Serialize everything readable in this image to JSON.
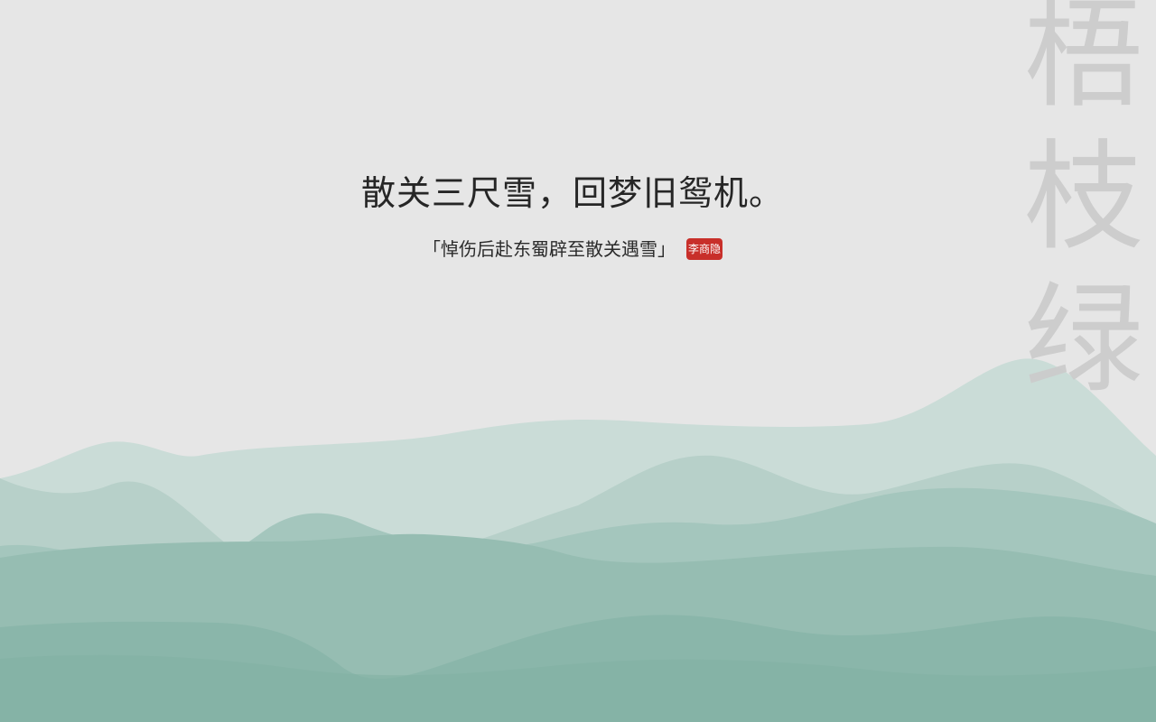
{
  "background": {
    "base_color": "#e6e6e6",
    "mountain_colors": [
      "#c9dcd7",
      "#b4cec7",
      "#a2c4bb",
      "#93bbaf",
      "#85b3a7"
    ]
  },
  "vertical_title": {
    "chars": [
      "梧",
      "枝",
      "绿"
    ],
    "color": "#cccccc"
  },
  "poem": {
    "line": "散关三尺雪，回梦旧鸳机。",
    "title": "「悼伤后赴东蜀辟至散关遇雪」",
    "author": "李商隐",
    "author_badge_color": "#c82f2a"
  }
}
